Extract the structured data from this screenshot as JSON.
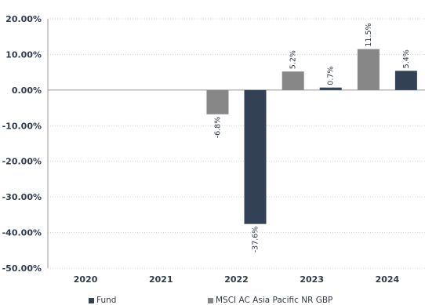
{
  "chart_data": {
    "type": "bar",
    "categories": [
      "2020",
      "2021",
      "2022",
      "2023",
      "2024"
    ],
    "series": [
      {
        "name": "MSCI AC Asia Pacific NR GBP",
        "color": "#878787",
        "values": [
          null,
          null,
          -6.8,
          5.2,
          11.5
        ]
      },
      {
        "name": "Fund",
        "color": "#334155",
        "values": [
          null,
          null,
          -37.6,
          0.7,
          5.4
        ]
      }
    ],
    "data_labels": [
      [
        null,
        null,
        "-6.8%",
        "5.2%",
        "11.5%"
      ],
      [
        null,
        null,
        "-37.6%",
        "0.7%",
        "5.4%"
      ]
    ],
    "yticks": [
      "20.00%",
      "10.00%",
      "0.00%",
      "-10.00%",
      "-20.00%",
      "-30.00%",
      "-40.00%",
      "-50.00%"
    ],
    "ylim": [
      -50,
      20
    ],
    "grid": true,
    "legend_position": "bottom"
  },
  "legend": {
    "items": [
      {
        "label": "Fund",
        "color": "#334155"
      },
      {
        "label": "MSCI AC Asia Pacific NR GBP",
        "color": "#878787"
      }
    ]
  }
}
